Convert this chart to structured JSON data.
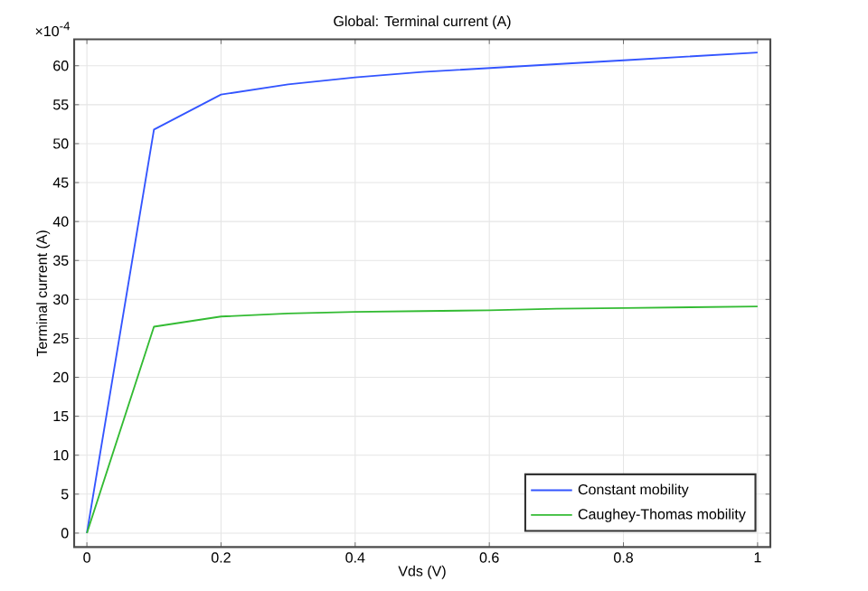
{
  "chart_data": {
    "type": "line",
    "title": "Global: Terminal current (A)",
    "xlabel": "Vds (V)",
    "ylabel": "Terminal current (A)",
    "annotations": [
      "×10$^{-4}$"
    ],
    "x": [
      0,
      0.1,
      0.2,
      0.3,
      0.4,
      0.5,
      0.6,
      0.7,
      0.8,
      0.9,
      1.0
    ],
    "series": [
      {
        "name": "Constant mobility",
        "color": "#3355ff",
        "values": [
          0,
          51.8,
          56.3,
          57.6,
          58.5,
          59.2,
          59.7,
          60.2,
          60.7,
          61.2,
          61.7
        ]
      },
      {
        "name": "Caughey-Thomas mobility",
        "color": "#33bb33",
        "values": [
          0,
          26.5,
          27.8,
          28.2,
          28.4,
          28.5,
          28.6,
          28.8,
          28.9,
          29.0,
          29.1
        ]
      }
    ],
    "xlim": [
      -0.019,
      1.019
    ],
    "ylim": [
      -1.8,
      63.4
    ],
    "xticks": [
      0,
      0.2,
      0.4,
      0.6,
      0.8,
      1
    ],
    "yticks": [
      0,
      5,
      10,
      15,
      20,
      25,
      30,
      35,
      40,
      45,
      50,
      55,
      60
    ],
    "grid": true,
    "legend": "bottom right",
    "marker": "none",
    "line_style": "solid"
  }
}
